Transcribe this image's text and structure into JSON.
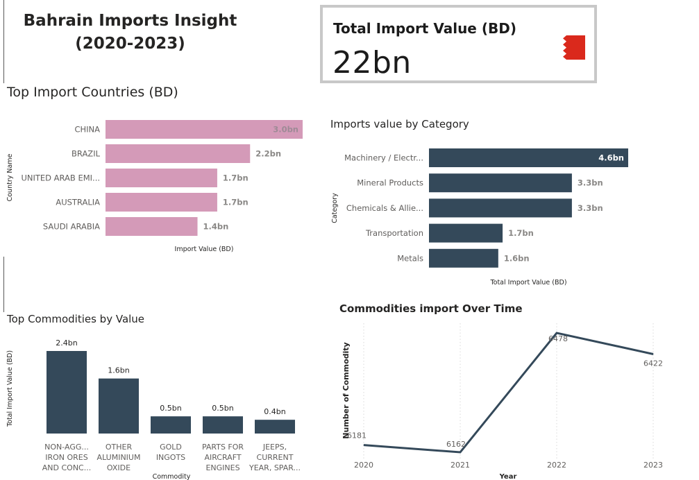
{
  "page_title": "Bahrain Imports Insight (2020-2023)",
  "page_title_line1": "Bahrain Imports Insight",
  "page_title_line2": "(2020-2023)",
  "colors": {
    "pink_bar": "#d49ab8",
    "slate_bar": "#34495a",
    "flag_red": "#da291c"
  },
  "kpi": {
    "label": "Total Import Value (BD)",
    "value": "22bn",
    "icon": "bahrain-flag-icon"
  },
  "chart_data": [
    {
      "id": "top_countries",
      "type": "bar",
      "orientation": "horizontal",
      "title": "Top Import Countries (BD)",
      "xlabel": "Import Value (BD)",
      "ylabel": "Country Name",
      "categories": [
        "CHINA",
        "BRAZIL",
        "UNITED ARAB EMI...",
        "AUSTRALIA",
        "SAUDI ARABIA"
      ],
      "values": [
        3.0,
        2.2,
        1.7,
        1.7,
        1.4
      ],
      "labels": [
        "3.0bn",
        "2.2bn",
        "1.7bn",
        "1.7bn",
        "1.4bn"
      ],
      "color": "#d49ab8"
    },
    {
      "id": "category",
      "type": "bar",
      "orientation": "horizontal",
      "title": "Imports value by Category",
      "xlabel": "Total Import Value (BD)",
      "ylabel": "Category",
      "categories": [
        "Machinery / Electr...",
        "Mineral Products",
        "Chemicals & Allie...",
        "Transportation",
        "Metals"
      ],
      "values": [
        4.6,
        3.3,
        3.3,
        1.7,
        1.6
      ],
      "labels": [
        "4.6bn",
        "3.3bn",
        "3.3bn",
        "1.7bn",
        "1.6bn"
      ],
      "color": "#34495a"
    },
    {
      "id": "commodities",
      "type": "bar",
      "orientation": "vertical",
      "title": "Top Commodities by Value",
      "xlabel": "Commodity",
      "ylabel": "Total Import Value (BD)",
      "categories": [
        [
          "NON-AGG...",
          "IRON ORES",
          "AND CONC..."
        ],
        [
          "OTHER",
          "ALUMINIUM",
          "OXIDE"
        ],
        [
          "GOLD",
          "INGOTS"
        ],
        [
          "PARTS FOR",
          "AIRCRAFT",
          "ENGINES"
        ],
        [
          "JEEPS,",
          "CURRENT",
          "YEAR, SPAR..."
        ]
      ],
      "values": [
        2.4,
        1.6,
        0.5,
        0.5,
        0.4
      ],
      "labels": [
        "2.4bn",
        "1.6bn",
        "0.5bn",
        "0.5bn",
        "0.4bn"
      ],
      "color": "#34495a"
    },
    {
      "id": "over_time",
      "type": "line",
      "title": "Commodities import Over Time",
      "xlabel": "Year",
      "ylabel": "Number of Commodity",
      "x": [
        "2020",
        "2021",
        "2022",
        "2023"
      ],
      "values": [
        6181,
        6162,
        6478,
        6422
      ],
      "labels": [
        "6181",
        "6162",
        "6478",
        "6422"
      ],
      "color": "#34495a"
    }
  ]
}
